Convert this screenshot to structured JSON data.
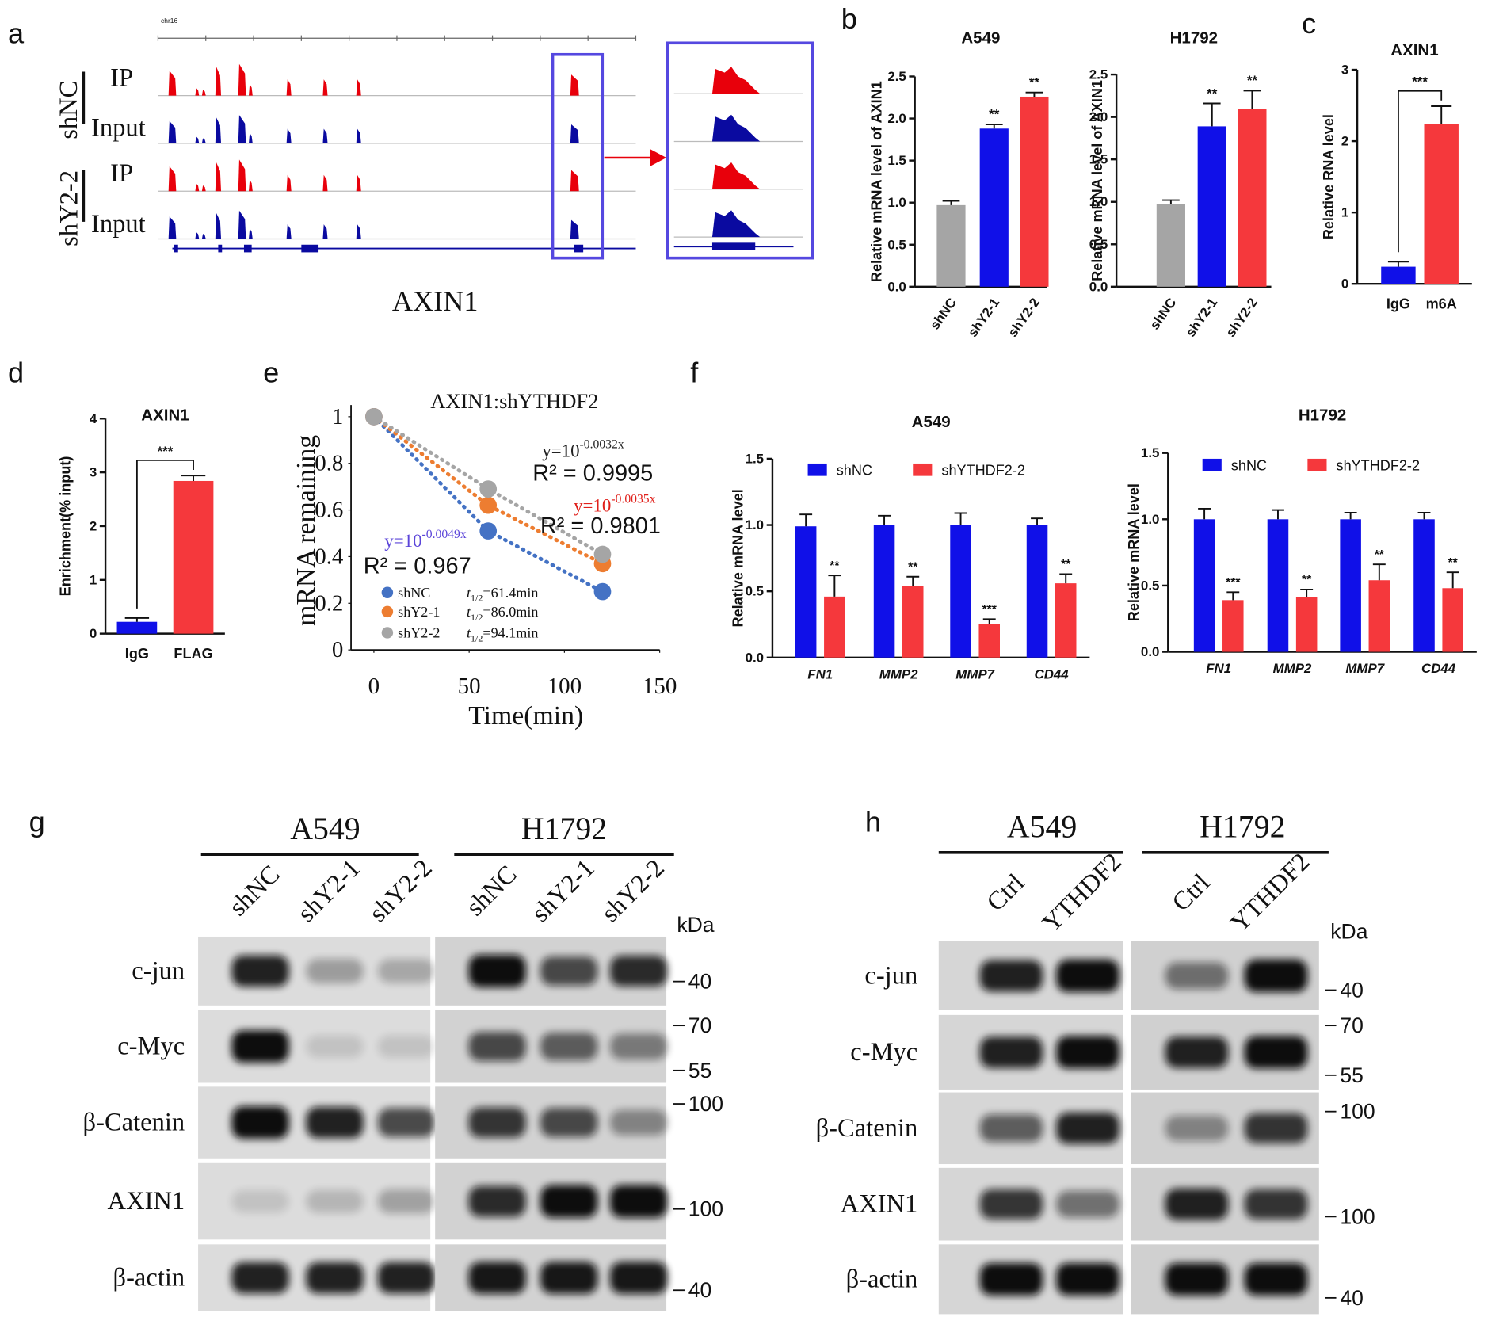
{
  "panel_labels": [
    "a",
    "b",
    "c",
    "d",
    "e",
    "f",
    "g",
    "h"
  ],
  "panel_a": {
    "chromosome": "chr16",
    "groups": [
      "shNC",
      "shY2-2"
    ],
    "tracks": [
      "IP",
      "Input",
      "IP",
      "Input"
    ],
    "gene": "AXIN1"
  },
  "chart_data": [
    {
      "type": "bar",
      "title": "A549",
      "y_label": "Relative mRNA level of AXIN1",
      "categories": [
        "shNC",
        "shY2-1",
        "shY2-2"
      ],
      "values": [
        0.97,
        1.88,
        2.26
      ],
      "errors": [
        0.05,
        0.05,
        0.05
      ],
      "colors": [
        "#a5a5a5",
        "#1010e8",
        "#f5383c"
      ],
      "significance": [
        null,
        "**",
        "**"
      ],
      "ylim": [
        0,
        2.5
      ],
      "yticks": [
        {
          "value": 0,
          "label": "0.0"
        },
        0.5,
        {
          "value": 1,
          "label": "1.0"
        },
        1.5,
        {
          "value": 2,
          "label": "2.0"
        },
        2.5
      ]
    },
    {
      "type": "bar",
      "title": "H1792",
      "y_label": "Relative mRNA level of AXIN1",
      "categories": [
        "shNC",
        "shY2-1",
        "shY2-2"
      ],
      "values": [
        0.97,
        1.89,
        2.09
      ],
      "errors": [
        0.05,
        0.27,
        0.22
      ],
      "colors": [
        "#a5a5a5",
        "#1010e8",
        "#f5383c"
      ],
      "significance": [
        null,
        "**",
        "**"
      ],
      "ylim": [
        0,
        2.5
      ],
      "yticks": [
        {
          "value": 0,
          "label": "0.0"
        },
        0.5,
        {
          "value": 1,
          "label": "1.0"
        },
        1.5,
        {
          "value": 2,
          "label": "2.0"
        },
        2.5
      ]
    },
    {
      "type": "bar",
      "title": "AXIN1",
      "y_label": "Relative RNA level",
      "categories": [
        "IgG",
        "m6A"
      ],
      "values": [
        0.24,
        2.24
      ],
      "errors": [
        0.07,
        0.25
      ],
      "colors": [
        "#1010e8",
        "#f5383c"
      ],
      "comparison": "***",
      "ylim": [
        0,
        3
      ],
      "yticks": [
        0,
        1,
        2,
        3
      ]
    },
    {
      "type": "bar",
      "title": "AXIN1",
      "y_label": "Enrichment(% input)",
      "categories": [
        "IgG",
        "FLAG"
      ],
      "values": [
        0.22,
        2.84
      ],
      "errors": [
        0.07,
        0.1
      ],
      "colors": [
        "#1010e8",
        "#f5383c"
      ],
      "comparison": "***",
      "ylim": [
        0,
        4
      ],
      "yticks": [
        0,
        1,
        2,
        3,
        4
      ]
    },
    {
      "type": "line",
      "title": "AXIN1:shYTHDF2",
      "x_label": "Time(min)",
      "y_label": "mRNA remaining",
      "x": [
        0,
        60,
        120
      ],
      "xlim": [
        -12,
        150
      ],
      "xticks": [
        0,
        50,
        100,
        150
      ],
      "ylim": [
        0,
        1.05
      ],
      "yticks": [
        0,
        0.2,
        0.4,
        0.6,
        0.8,
        1
      ],
      "series": [
        {
          "name": "shNC",
          "color": "#4472c4",
          "values": [
            1,
            0.51,
            0.25
          ],
          "equation": {
            "base": "y=10",
            "exponent": "-0.0049x"
          },
          "equation_color": "#5b45d9",
          "r_squared": "R² = 0.967",
          "half_life": {
            "symbol": "t",
            "subscript": "1/2",
            "text": "=61.4min"
          }
        },
        {
          "name": "shY2-1",
          "color": "#ed7d31",
          "values": [
            1,
            0.62,
            0.37
          ],
          "equation": {
            "base": "y=10",
            "exponent": "-0.0035x"
          },
          "equation_color": "#e0201b",
          "r_squared": "R² = 0.9801",
          "half_life": {
            "symbol": "t",
            "subscript": "1/2",
            "text": "=86.0min"
          }
        },
        {
          "name": "shY2-2",
          "color": "#a5a5a5",
          "values": [
            1,
            0.69,
            0.41
          ],
          "equation": {
            "base": "y=10",
            "exponent": "-0.0032x"
          },
          "equation_color": "#222222",
          "r_squared": "R² = 0.9995",
          "half_life": {
            "symbol": "t",
            "subscript": "1/2",
            "text": "=94.1min"
          }
        }
      ]
    },
    {
      "type": "grouped_bar",
      "title": "A549",
      "y_label": "Relative mRNA level",
      "categories": [
        "FN1",
        "MMP2",
        "MMP7",
        "CD44"
      ],
      "ylim": [
        0,
        1.5
      ],
      "yticks": [
        {
          "value": 0,
          "label": "0.0"
        },
        0.5,
        {
          "value": 1,
          "label": "1.0"
        },
        1.5
      ],
      "series": [
        {
          "name": "shNC",
          "color": "#1010e8",
          "values": [
            0.99,
            1.0,
            1.0,
            1.0
          ],
          "errors": [
            0.09,
            0.07,
            0.09,
            0.05
          ]
        },
        {
          "name": "shYTHDF2-2",
          "color": "#f5383c",
          "values": [
            0.46,
            0.54,
            0.25,
            0.56
          ],
          "errors": [
            0.16,
            0.07,
            0.04,
            0.07
          ],
          "significance": [
            "**",
            "**",
            "***",
            "**"
          ]
        }
      ]
    },
    {
      "type": "grouped_bar",
      "title": "H1792",
      "y_label": "Relative mRNA level",
      "categories": [
        "FN1",
        "MMP2",
        "MMP7",
        "CD44"
      ],
      "ylim": [
        0,
        1.5
      ],
      "yticks": [
        {
          "value": 0,
          "label": "0.0"
        },
        0.5,
        {
          "value": 1,
          "label": "1.0"
        },
        1.5
      ],
      "series": [
        {
          "name": "shNC",
          "color": "#1010e8",
          "values": [
            1.0,
            1.0,
            1.0,
            1.0
          ],
          "errors": [
            0.08,
            0.07,
            0.05,
            0.05
          ]
        },
        {
          "name": "shYTHDF2-2",
          "color": "#f5383c",
          "values": [
            0.39,
            0.41,
            0.54,
            0.48
          ],
          "errors": [
            0.06,
            0.06,
            0.12,
            0.12
          ],
          "significance": [
            "***",
            "**",
            "**",
            "**"
          ]
        }
      ]
    }
  ],
  "panel_g": {
    "cell_lines": [
      "A549",
      "H1792"
    ],
    "lanes": [
      "shNC",
      "shY2-1",
      "shY2-2"
    ],
    "unit": "kDa",
    "proteins": [
      "c-jun",
      "c-Myc",
      "β-Catenin",
      "AXIN1",
      "β-actin"
    ],
    "markers": [
      40,
      70,
      55,
      100,
      100,
      40
    ]
  },
  "panel_h": {
    "cell_lines": [
      "A549",
      "H1792"
    ],
    "lanes": [
      "Ctrl",
      "YTHDF2"
    ],
    "unit": "kDa",
    "proteins": [
      "c-jun",
      "c-Myc",
      "β-Catenin",
      "AXIN1",
      "β-actin"
    ],
    "markers": [
      40,
      70,
      55,
      100,
      100,
      40
    ]
  }
}
